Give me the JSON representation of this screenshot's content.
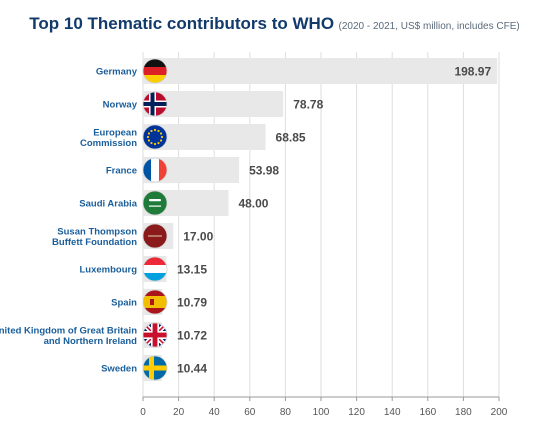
{
  "chart_data": {
    "type": "bar",
    "orientation": "horizontal",
    "title": "Top 10 Thematic contributors to WHO",
    "subtitle": "(2020 - 2021, US$ million, includes CFE)",
    "categories": [
      "Germany",
      "Norway",
      "European Commission",
      "France",
      "Saudi Arabia",
      "Susan Thompson Buffett Foundation",
      "Luxembourg",
      "Spain",
      "United Kingdom of Great Britain and Northern Ireland",
      "Sweden"
    ],
    "category_lines": [
      [
        "Germany"
      ],
      [
        "Norway"
      ],
      [
        "European",
        "Commission"
      ],
      [
        "France"
      ],
      [
        "Saudi Arabia"
      ],
      [
        "Susan Thompson",
        "Buffett Foundation"
      ],
      [
        "Luxembourg"
      ],
      [
        "Spain"
      ],
      [
        "United Kingdom of Great Britain",
        "and Northern Ireland"
      ],
      [
        "Sweden"
      ]
    ],
    "values": [
      198.97,
      78.78,
      68.85,
      53.98,
      48.0,
      17.0,
      13.15,
      10.79,
      10.72,
      10.44
    ],
    "value_labels": [
      "198.97",
      "78.78",
      "68.85",
      "53.98",
      "48.00",
      "17.00",
      "13.15",
      "10.79",
      "10.72",
      "10.44"
    ],
    "icons": [
      "germany-flag-icon",
      "norway-flag-icon",
      "eu-flag-icon",
      "france-flag-icon",
      "saudi-flag-icon",
      "foundation-logo-icon",
      "luxembourg-flag-icon",
      "spain-flag-icon",
      "uk-flag-icon",
      "sweden-flag-icon"
    ],
    "xlim": [
      0,
      200
    ],
    "xticks": [
      0,
      20,
      40,
      60,
      80,
      100,
      120,
      140,
      160,
      180,
      200
    ],
    "grid": true,
    "colors": {
      "bar": "#e8e8e8",
      "title": "#123a6b",
      "category_label": "#1a5e9a",
      "value_label": "#4a4a4a",
      "grid": "#dedede"
    }
  }
}
